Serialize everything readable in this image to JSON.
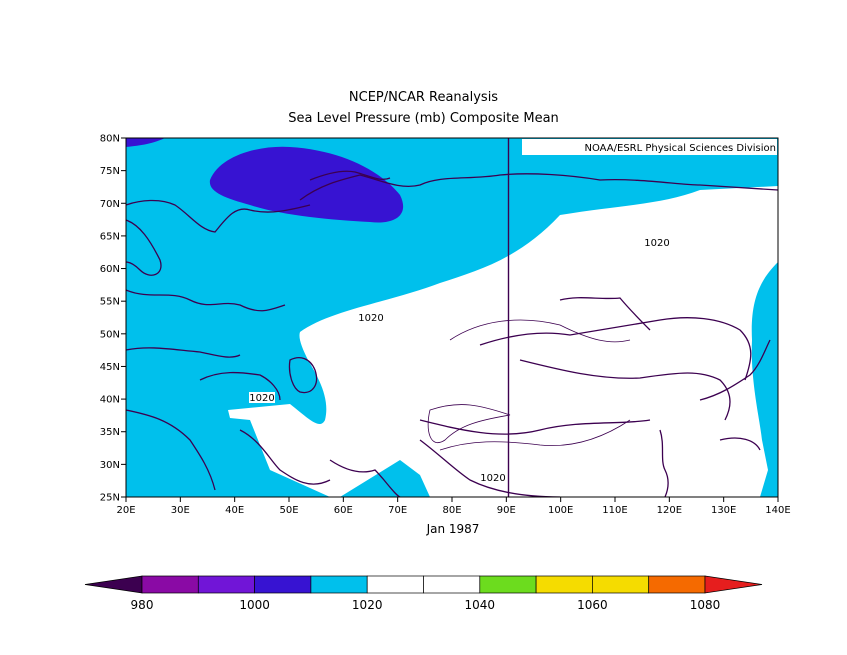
{
  "title": "NCEP/NCAR Reanalysis",
  "subtitle": "Sea Level Pressure (mb) Composite Mean",
  "credit": "NOAA/ESRL Physical Sciences Division",
  "date_label": "Jan 1987",
  "map": {
    "lon_range": [
      20,
      140
    ],
    "lat_range": [
      25,
      80
    ],
    "lat_ticks": [
      "80N",
      "75N",
      "70N",
      "65N",
      "60N",
      "55N",
      "50N",
      "45N",
      "40N",
      "35N",
      "30N",
      "25N"
    ],
    "lon_ticks": [
      "20E",
      "30E",
      "40E",
      "50E",
      "60E",
      "70E",
      "80E",
      "90E",
      "100E",
      "110E",
      "120E",
      "130E",
      "140E"
    ],
    "contour_labels": [
      "1020",
      "1020",
      "1020",
      "1020"
    ],
    "colors": {
      "range_1010_1020": "#00c0ec",
      "range_1000_1010": "#3713d2",
      "range_1020_1040": "#ffffff",
      "coastline": "#3c0050",
      "grid": "#3c0050"
    }
  },
  "colorbar": {
    "labels": [
      "980",
      "1000",
      "1020",
      "1040",
      "1060",
      "1080"
    ],
    "colors": [
      "#3c0050",
      "#8a0aa5",
      "#7115d7",
      "#3713d2",
      "#00c0ec",
      "#ffffff",
      "#ffffff",
      "#6cdc1e",
      "#f5dc00",
      "#f5dc00",
      "#f56a00",
      "#e61e1e"
    ]
  }
}
